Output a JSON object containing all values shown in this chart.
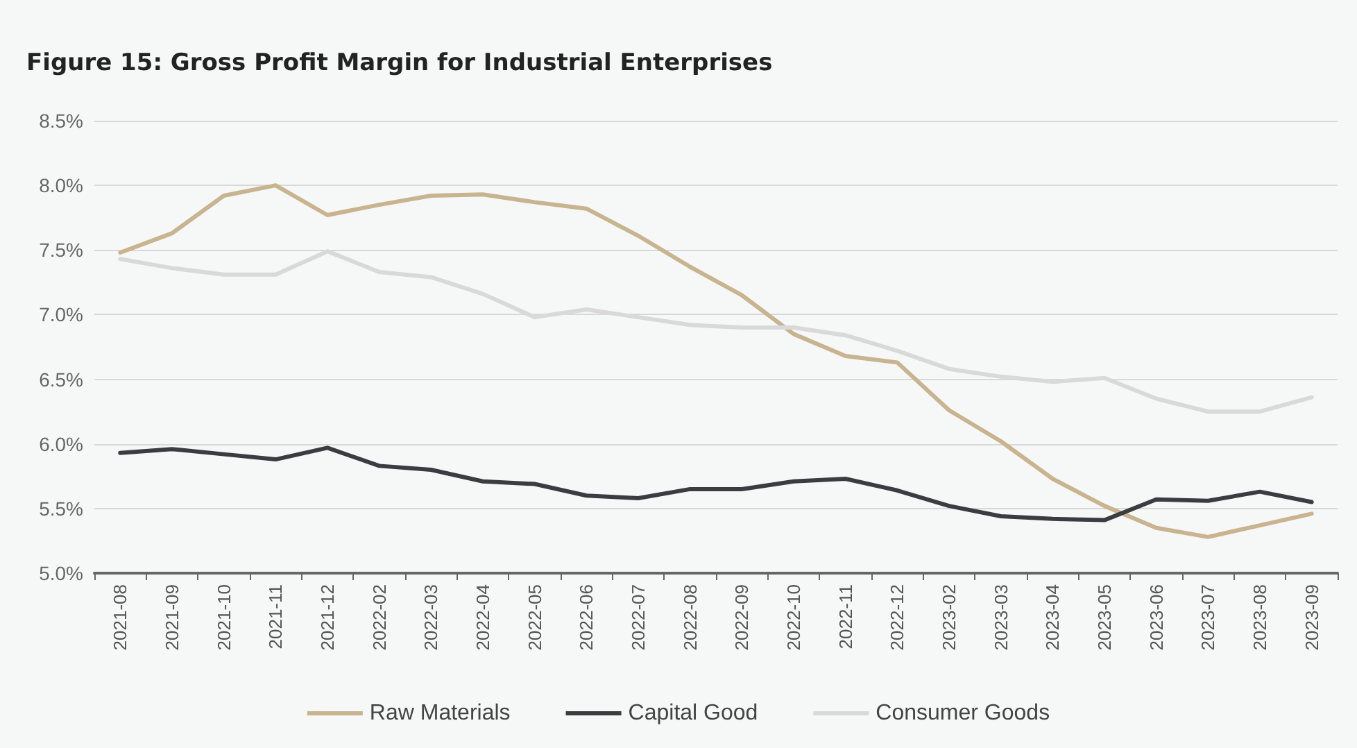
{
  "chart_data": {
    "type": "line",
    "title": "Figure 15: Gross Profit Margin for Industrial Enterprises",
    "categories": [
      "2021-08",
      "2021-09",
      "2021-10",
      "2021-11",
      "2021-12",
      "2022-02",
      "2022-03",
      "2022-04",
      "2022-05",
      "2022-06",
      "2022-07",
      "2022-08",
      "2022-09",
      "2022-10",
      "2022-11",
      "2022-12",
      "2023-02",
      "2023-03",
      "2023-04",
      "2023-05",
      "2023-06",
      "2023-07",
      "2023-08",
      "2023-09"
    ],
    "series": [
      {
        "name": "Raw Materials",
        "color": "#c8b48f",
        "values": [
          7.48,
          7.63,
          7.92,
          8.0,
          7.77,
          7.85,
          7.92,
          7.93,
          7.87,
          7.82,
          7.61,
          7.37,
          7.15,
          6.85,
          6.68,
          6.63,
          6.26,
          6.02,
          5.73,
          5.52,
          5.35,
          5.28,
          5.37,
          5.46
        ]
      },
      {
        "name": "Capital Good",
        "color": "#3a3d3f",
        "values": [
          5.93,
          5.96,
          5.92,
          5.88,
          5.97,
          5.83,
          5.8,
          5.71,
          5.69,
          5.6,
          5.58,
          5.65,
          5.65,
          5.71,
          5.73,
          5.64,
          5.52,
          5.44,
          5.42,
          5.41,
          5.57,
          5.56,
          5.63,
          5.55
        ]
      },
      {
        "name": "Consumer Goods",
        "color": "#d9d9d9",
        "values": [
          7.43,
          7.36,
          7.31,
          7.31,
          7.49,
          7.33,
          7.29,
          7.16,
          6.98,
          7.04,
          6.98,
          6.92,
          6.9,
          6.9,
          6.84,
          6.72,
          6.58,
          6.52,
          6.48,
          6.51,
          6.35,
          6.25,
          6.25,
          6.36
        ]
      }
    ],
    "ylim": [
      5.0,
      8.5
    ],
    "yticks": [
      {
        "value": 5.0,
        "label": "5.0%"
      },
      {
        "value": 5.5,
        "label": "5.5%"
      },
      {
        "value": 6.0,
        "label": "6.0%"
      },
      {
        "value": 6.5,
        "label": "6.5%"
      },
      {
        "value": 7.0,
        "label": "7.0%"
      },
      {
        "value": 7.5,
        "label": "7.5%"
      },
      {
        "value": 8.0,
        "label": "8.0%"
      },
      {
        "value": 8.5,
        "label": "8.5%"
      }
    ],
    "grid": "y",
    "legend": "bottom",
    "marker": "none",
    "line_style": "solid"
  }
}
